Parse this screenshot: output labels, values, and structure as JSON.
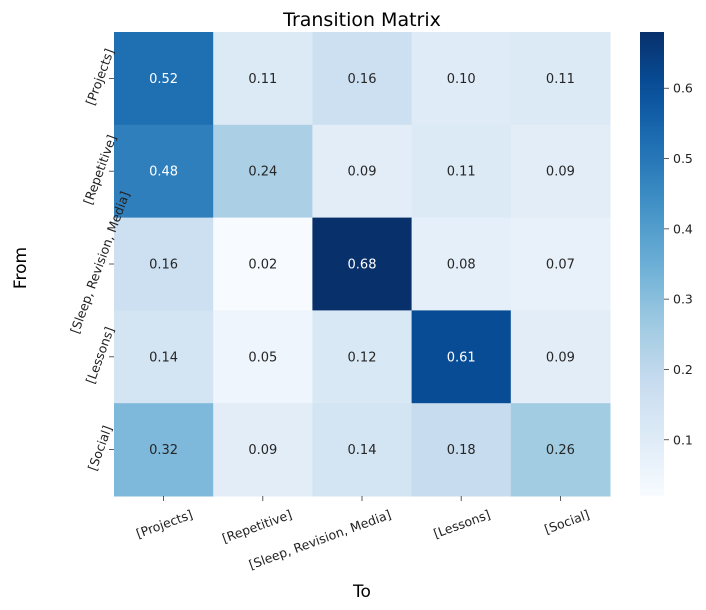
{
  "chart_data": {
    "type": "heatmap",
    "title": "Transition Matrix",
    "xlabel": "To",
    "ylabel": "From",
    "x_categories": [
      "[Projects]",
      "[Repetitive]",
      "[Sleep, Revision, Media]",
      "[Lessons]",
      "[Social]"
    ],
    "y_categories": [
      "[Projects]",
      "[Repetitive]",
      "[Sleep, Revision, Media]",
      "[Lessons]",
      "[Social]"
    ],
    "values": [
      [
        0.52,
        0.11,
        0.16,
        0.1,
        0.11
      ],
      [
        0.48,
        0.24,
        0.09,
        0.11,
        0.09
      ],
      [
        0.16,
        0.02,
        0.68,
        0.08,
        0.07
      ],
      [
        0.14,
        0.05,
        0.12,
        0.61,
        0.09
      ],
      [
        0.32,
        0.09,
        0.14,
        0.18,
        0.26
      ]
    ],
    "value_format": "0.00",
    "colormap": "Blues",
    "colorbar": {
      "range": [
        0.02,
        0.68
      ],
      "ticks": [
        0.1,
        0.2,
        0.3,
        0.4,
        0.5,
        0.6
      ],
      "tick_labels": [
        "0.1",
        "0.2",
        "0.3",
        "0.4",
        "0.5",
        "0.6"
      ]
    },
    "grid": false
  }
}
